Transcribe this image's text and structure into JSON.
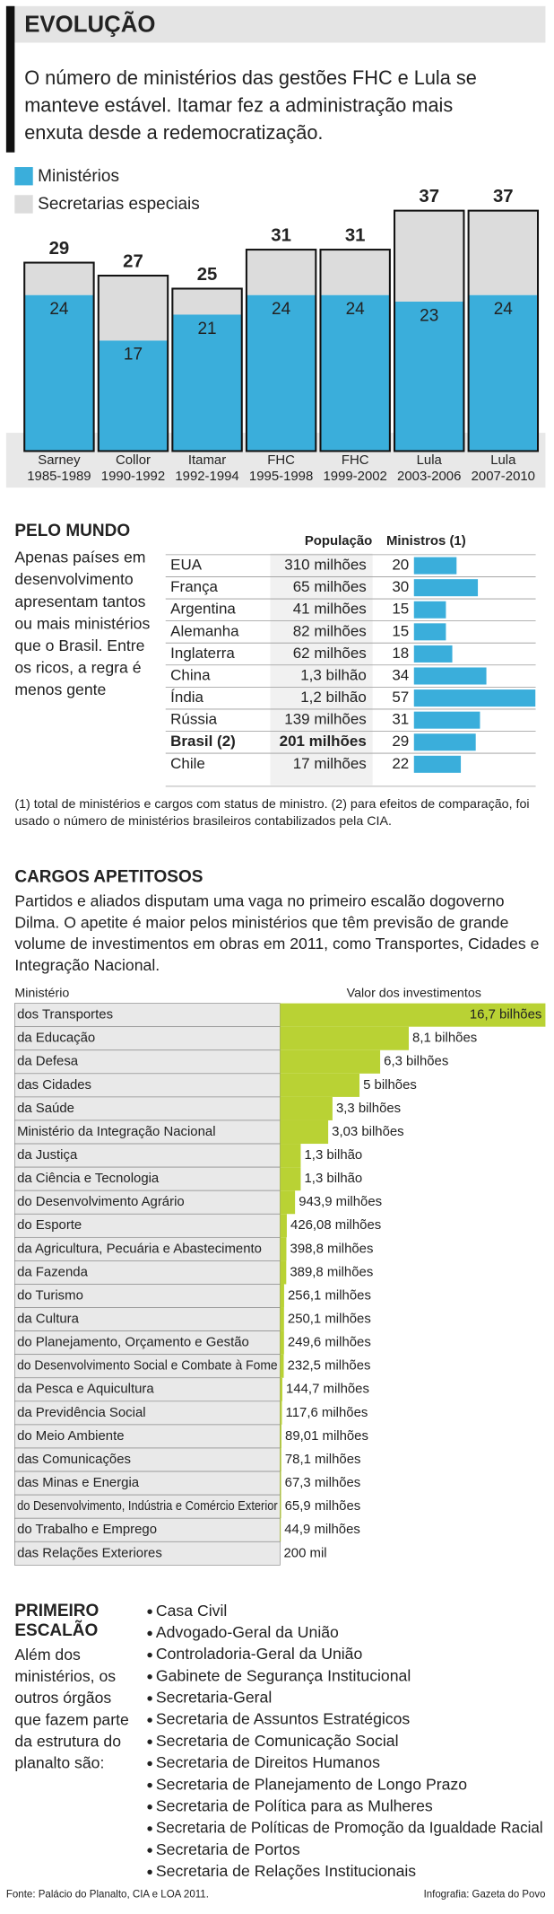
{
  "evolucao": {
    "title": "EVOLUÇÃO",
    "text": [
      "O número de ministérios das gestões FHC e Lula se",
      "manteve estável. Itamar fez a administração mais",
      "enxuta desde a redemocratização."
    ],
    "legend": [
      "Ministérios",
      "Secretarias especiais"
    ],
    "colors": [
      "#3aaedb",
      "#dcdcdc"
    ],
    "names": [
      "Sarney",
      "Collor",
      "Itamar",
      "FHC",
      "FHC",
      "Lula",
      "Lula"
    ],
    "periods": [
      "1985-1989",
      "1990-1992",
      "1992-1994",
      "1995-1998",
      "1999-2002",
      "2003-2006",
      "2007-2010"
    ],
    "totals": [
      29,
      27,
      25,
      31,
      31,
      37,
      37
    ],
    "ministerios": [
      24,
      17,
      21,
      24,
      24,
      23,
      24
    ],
    "secretarias": [
      5,
      10,
      4,
      7,
      7,
      14,
      13
    ]
  },
  "mundo": {
    "title": "PELO MUNDO",
    "text": [
      "Apenas países em",
      "desenvolvimento",
      "apresentam tantos",
      "ou mais ministérios",
      "que o Brasil. Entre",
      "os ricos, a regra é",
      "menos gente"
    ],
    "headers": [
      "População",
      "Ministros (1)"
    ],
    "countries": [
      "EUA",
      "França",
      "Argentina",
      "Alemanha",
      "Inglaterra",
      "China",
      "Índia",
      "Rússia",
      "Brasil (2)",
      "Chile"
    ],
    "population": [
      "310 milhões",
      "65 milhões",
      "41 milhões",
      "82 milhões",
      "62 milhões",
      "1,3 bilhão",
      "1,2 bilhão",
      "139 milhões",
      "201 milhões",
      "17 milhões"
    ],
    "ministros": [
      20,
      30,
      15,
      15,
      18,
      34,
      57,
      31,
      29,
      22
    ],
    "color": "#3aaedb",
    "notes": [
      "(1) total de ministérios e cargos com status de ministro. (2) para efeitos de comparação, foi",
      "usado o número de ministérios brasileiros contabilizados pela CIA."
    ]
  },
  "cargos": {
    "title": "CARGOS APETITOSOS",
    "text": [
      "Partidos e aliados disputam uma vaga no primeiro escalão dogoverno",
      "Dilma. O apetite é maior pelos ministérios que têm previsão de grande",
      "volume de investimentos  em obras em 2011, como Transportes, Cidades e",
      "Integração Nacional."
    ],
    "headers": [
      "Ministério",
      "Valor dos investimentos"
    ],
    "ministerios": [
      "dos Transportes",
      "da Educação",
      "da Defesa",
      "das Cidades",
      "da Saúde",
      "Ministério da Integração Nacional",
      "da Justiça",
      "da Ciência e Tecnologia",
      "do Desenvolvimento Agrário",
      "do Esporte",
      "da Agricultura, Pecuária e Abastecimento",
      "da Fazenda",
      "do Turismo",
      "da Cultura",
      "do Planejamento, Orçamento e Gestão",
      "do Desenvolvimento Social e Combate à Fome",
      "da Pesca e Aquicultura",
      "da Previdência Social",
      "do Meio Ambiente",
      "das Comunicações",
      "das Minas e Energia",
      "do Desenvolvimento, Indústria e Comércio Exterior",
      "do Trabalho e Emprego",
      "das Relações Exteriores"
    ],
    "values": [
      16700,
      8100,
      6300,
      5000,
      3300,
      3030,
      1300,
      1300,
      943.9,
      426.08,
      398.8,
      389.8,
      256.1,
      250.1,
      249.6,
      232.5,
      144.7,
      117.6,
      89.01,
      78.1,
      67.3,
      65.9,
      44.9,
      0.2
    ],
    "value_labels": [
      "16,7 bilhões",
      "8,1 bilhões",
      "6,3 bilhões",
      "5 bilhões",
      "3,3 bilhões",
      "3,03 bilhões",
      "1,3 bilhão",
      "1,3 bilhão",
      "943,9 milhões",
      "426,08 milhões",
      "398,8 milhões",
      "389,8 milhões",
      "256,1 milhões",
      "250,1 milhões",
      "249,6 milhões",
      "232,5 milhões",
      "144,7 milhões",
      "117,6 milhões",
      "89,01 milhões",
      "78,1 milhões",
      "67,3 milhões",
      "65,9 milhões",
      "44,9 milhões",
      "200 mil"
    ],
    "color": "#b9d234"
  },
  "escalao": {
    "title": [
      "PRIMEIRO",
      "ESCALÃO"
    ],
    "text": [
      "Além dos",
      "ministérios, os",
      "outros órgãos",
      "que fazem parte",
      "da estrutura do",
      "planalto são:"
    ],
    "items": [
      "Casa Civil",
      "Advogado-Geral da União",
      "Controladoria-Geral da União",
      "Gabinete de Segurança Institucional",
      "Secretaria-Geral",
      "Secretaria de Assuntos Estratégicos",
      "Secretaria de Comunicação Social",
      "Secretaria de Direitos Humanos",
      "Secretaria de Planejamento de Longo Prazo",
      "Secretaria de Política para as Mulheres",
      "Secretaria de Políticas de Promoção da Igualdade Racial",
      "Secretaria de Portos",
      "Secretaria de Relações Institucionais"
    ]
  },
  "footer": {
    "source": "Fonte: Palácio do Planalto, CIA e LOA 2011.",
    "credit": "Infografia: Gazeta do Povo"
  }
}
